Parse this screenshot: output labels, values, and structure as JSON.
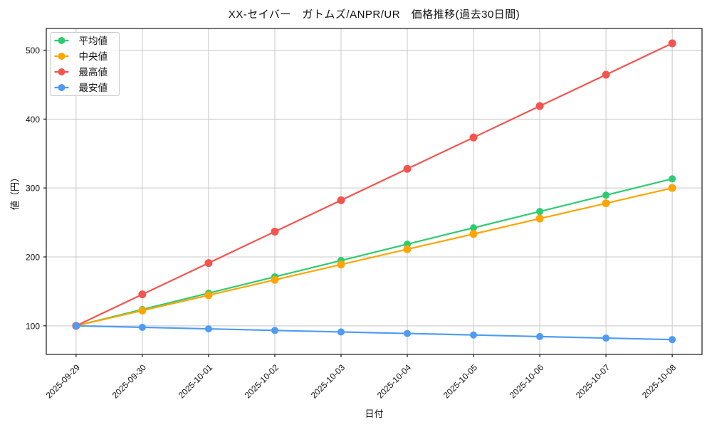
{
  "title": "XX-セイバー　ガトムズ/ANPR/UR　価格推移(過去30日間)",
  "chart_data": {
    "type": "line",
    "title": "XX-セイバー　ガトムズ/ANPR/UR　価格推移(過去30日間)",
    "xlabel": "日付",
    "ylabel": "値（円）",
    "x": [
      "2025-09-29",
      "2025-09-30",
      "2025-10-01",
      "2025-10-02",
      "2025-10-03",
      "2025-10-04",
      "2025-10-05",
      "2025-10-06",
      "2025-10-07",
      "2025-10-08"
    ],
    "series": [
      {
        "key": "avg",
        "name": "平均値",
        "color": "#2ecc71",
        "marker_r": 5,
        "values": [
          100,
          123.7,
          147.4,
          171.1,
          194.8,
          218.5,
          242.2,
          265.9,
          289.6,
          313.3
        ]
      },
      {
        "key": "median",
        "name": "中央値",
        "color": "#ffa502",
        "marker_r": 5.5,
        "values": [
          100,
          122.2,
          144.4,
          166.7,
          188.9,
          211.1,
          233.3,
          255.6,
          277.8,
          300
        ]
      },
      {
        "key": "max",
        "name": "最高値",
        "color": "#f4544e",
        "marker_r": 5.5,
        "values": [
          100,
          145.6,
          191.1,
          236.7,
          282.2,
          327.8,
          373.3,
          418.9,
          464.4,
          510
        ]
      },
      {
        "key": "min",
        "name": "最安値",
        "color": "#4e9bf5",
        "marker_r": 5,
        "values": [
          100,
          97.8,
          95.6,
          93.3,
          91.1,
          88.9,
          86.7,
          84.4,
          82.2,
          80
        ]
      }
    ],
    "yticks": [
      100,
      200,
      300,
      400,
      500
    ],
    "ylim": [
      58.5,
      531.5
    ],
    "xlim": [
      -0.45,
      9.45
    ],
    "grid": true,
    "grid_color": "#c8c8c8",
    "spine_color": "#1a1a1a",
    "tick_label_color": "#111111",
    "legend": {
      "position": "upper left"
    }
  }
}
